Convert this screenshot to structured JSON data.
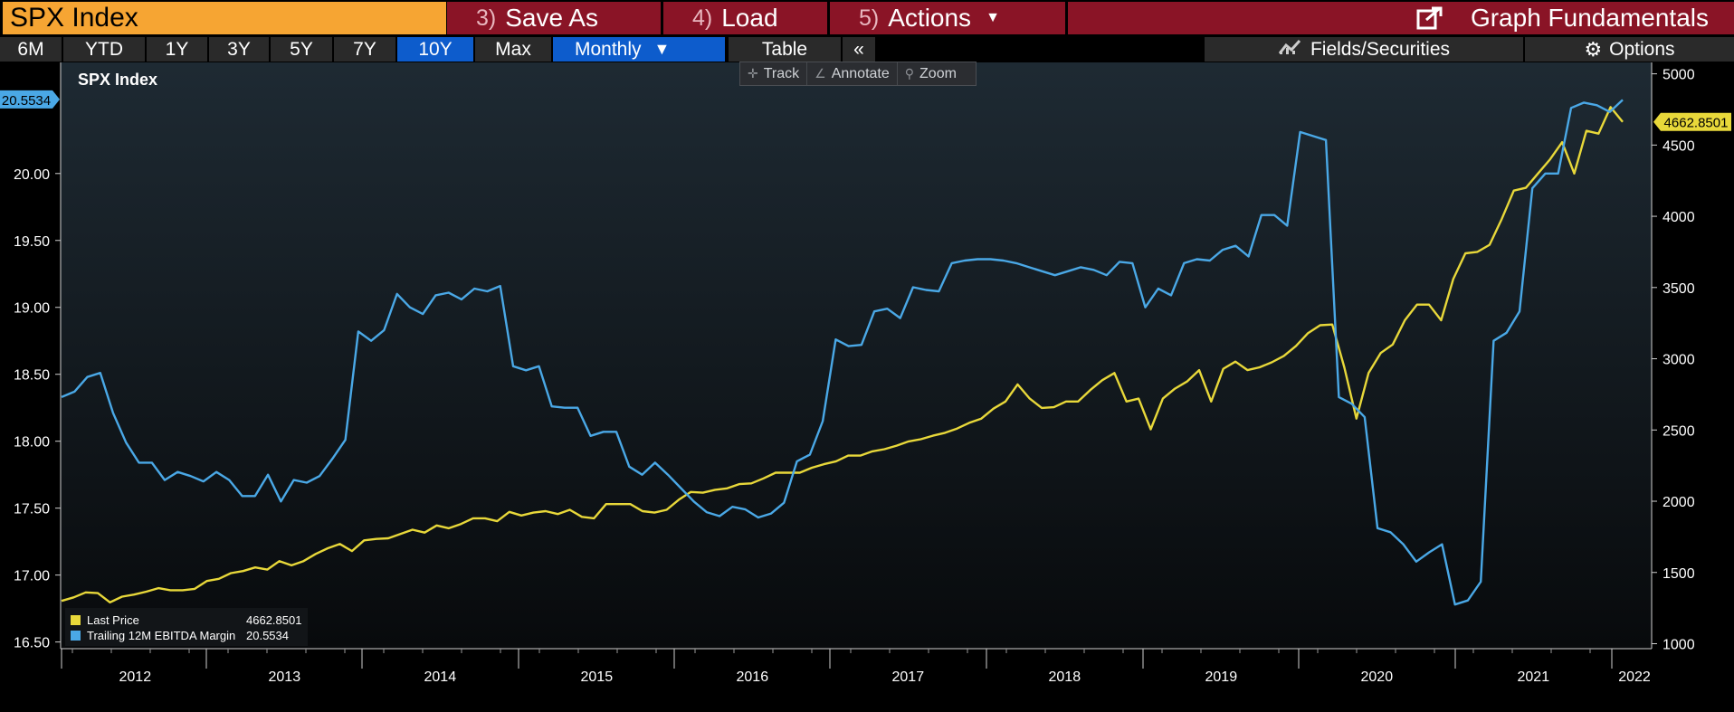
{
  "security": {
    "ticker": "SPX Index"
  },
  "menu": {
    "save_num": "3)",
    "save_label": "Save As",
    "load_num": "4)",
    "load_label": "Load",
    "actions_num": "5)",
    "actions_label": "Actions",
    "graph_fund_label": "Graph Fundamentals"
  },
  "toolbar": {
    "ranges": [
      "6M",
      "YTD",
      "1Y",
      "3Y",
      "5Y",
      "7Y",
      "10Y",
      "Max"
    ],
    "active_range": "10Y",
    "period_label": "Monthly",
    "table_label": "Table",
    "collapse_label": "«",
    "fields_label": "Fields/Securities",
    "options_label": "Options"
  },
  "chart_tools": {
    "track": "Track",
    "annotate": "Annotate",
    "zoom": "Zoom"
  },
  "chart_data": {
    "type": "line",
    "title": "SPX Index",
    "x_labels": [
      "2012",
      "2013",
      "2014",
      "2015",
      "2016",
      "2017",
      "2018",
      "2019",
      "2020",
      "2021",
      "2022"
    ],
    "x_range": [
      "2011-07",
      "2022-02"
    ],
    "left_axis": {
      "ticks": [
        "16.50",
        "17.00",
        "17.50",
        "18.00",
        "18.50",
        "19.00",
        "19.50",
        "20.00"
      ],
      "range": [
        16.45,
        20.83
      ]
    },
    "right_axis": {
      "ticks": [
        "1000",
        "1500",
        "2000",
        "2500",
        "3000",
        "3500",
        "4000",
        "4500",
        "5000"
      ],
      "range": [
        965,
        5080
      ]
    },
    "grid": false,
    "legend_position": "bottom-left",
    "colors": {
      "background_top": "#1e2a33",
      "background_bottom": "#080a0c",
      "price": "#e8d83a",
      "margin": "#4aa8e6"
    },
    "series": [
      {
        "name": "Last Price",
        "axis": "right",
        "last_value": "4662.8501",
        "values": [
          1300,
          1325,
          1360,
          1355,
          1290,
          1330,
          1345,
          1365,
          1390,
          1375,
          1375,
          1385,
          1440,
          1455,
          1495,
          1510,
          1535,
          1520,
          1580,
          1550,
          1580,
          1630,
          1670,
          1700,
          1650,
          1725,
          1735,
          1740,
          1770,
          1800,
          1780,
          1830,
          1810,
          1840,
          1880,
          1880,
          1860,
          1925,
          1900,
          1920,
          1930,
          1910,
          1940,
          1890,
          1880,
          1980,
          1980,
          1980,
          1930,
          1920,
          1940,
          2010,
          2065,
          2060,
          2080,
          2090,
          2120,
          2125,
          2160,
          2200,
          2200,
          2200,
          2235,
          2260,
          2280,
          2320,
          2320,
          2350,
          2365,
          2390,
          2420,
          2435,
          2460,
          2480,
          2510,
          2550,
          2580,
          2650,
          2700,
          2820,
          2720,
          2655,
          2660,
          2700,
          2700,
          2780,
          2850,
          2900,
          2700,
          2720,
          2505,
          2720,
          2790,
          2840,
          2920,
          2700,
          2930,
          2980,
          2920,
          2940,
          2975,
          3020,
          3090,
          3180,
          3235,
          3240,
          2940,
          2580,
          2900,
          3040,
          3100,
          3270,
          3380,
          3380,
          3270,
          3560,
          3740,
          3750,
          3800,
          3980,
          4180,
          4200,
          4300,
          4400,
          4520,
          4300,
          4600,
          4580,
          4766,
          4662.85
        ]
      },
      {
        "name": "Trailing 12M EBITDA Margin",
        "axis": "left",
        "last_value": "20.5534",
        "values": [
          18.33,
          18.37,
          18.48,
          18.51,
          18.21,
          17.99,
          17.84,
          17.84,
          17.71,
          17.77,
          17.74,
          17.7,
          17.77,
          17.71,
          17.59,
          17.59,
          17.75,
          17.55,
          17.71,
          17.69,
          17.74,
          17.87,
          18.01,
          18.82,
          18.75,
          18.83,
          19.1,
          19.0,
          18.95,
          19.09,
          19.11,
          19.06,
          19.14,
          19.12,
          19.16,
          18.56,
          18.53,
          18.56,
          18.26,
          18.25,
          18.25,
          18.04,
          18.07,
          18.07,
          17.81,
          17.75,
          17.84,
          17.75,
          17.65,
          17.55,
          17.47,
          17.44,
          17.51,
          17.49,
          17.43,
          17.46,
          17.54,
          17.85,
          17.9,
          18.15,
          18.76,
          18.71,
          18.72,
          18.97,
          18.99,
          18.92,
          19.15,
          19.13,
          19.12,
          19.33,
          19.35,
          19.36,
          19.36,
          19.35,
          19.33,
          19.3,
          19.27,
          19.24,
          19.27,
          19.3,
          19.28,
          19.24,
          19.34,
          19.33,
          19.0,
          19.14,
          19.09,
          19.33,
          19.36,
          19.35,
          19.43,
          19.46,
          19.38,
          19.69,
          19.69,
          19.61,
          20.31,
          20.28,
          20.25,
          18.33,
          18.28,
          18.18,
          17.35,
          17.32,
          17.23,
          17.1,
          17.17,
          17.23,
          16.78,
          16.81,
          16.95,
          18.75,
          18.81,
          18.97,
          19.89,
          20.0,
          20.0,
          20.49,
          20.53,
          20.51,
          20.46,
          20.55
        ]
      }
    ]
  }
}
